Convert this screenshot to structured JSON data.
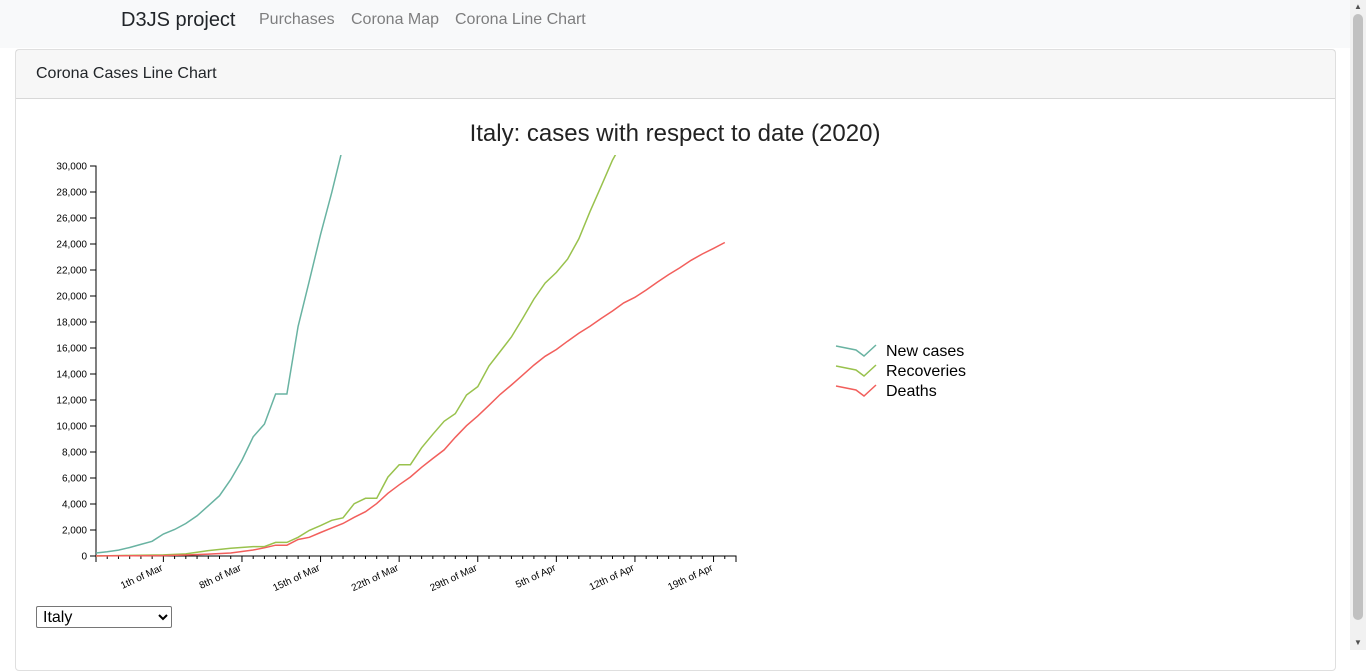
{
  "navbar": {
    "brand": "D3JS project",
    "links": [
      {
        "label": "Purchases"
      },
      {
        "label": "Corona Map"
      },
      {
        "label": "Corona Line Chart"
      }
    ]
  },
  "card": {
    "title": "Corona Cases Line Chart"
  },
  "selector": {
    "selected": "Italy",
    "options": [
      "Italy"
    ]
  },
  "chart_data": {
    "type": "line",
    "title": "Italy: cases with respect to date (2020)",
    "xlabel": "",
    "ylabel": "",
    "x_ticks": [
      "1th of Mar",
      "8th of Mar",
      "15th of Mar",
      "22th of Mar",
      "29th of Mar",
      "5th of Apr",
      "12th of Apr",
      "19th of Apr"
    ],
    "x": [
      "2020-02-24",
      "2020-02-27",
      "2020-03-01",
      "2020-03-03",
      "2020-03-05",
      "2020-03-07",
      "2020-03-09",
      "2020-03-10",
      "2020-03-11",
      "2020-03-12",
      "2020-03-13",
      "2020-03-14",
      "2020-03-15",
      "2020-03-17",
      "2020-03-20",
      "2020-03-22",
      "2020-03-26",
      "2020-03-29",
      "2020-04-01",
      "2020-04-05",
      "2020-04-09",
      "2020-04-12",
      "2020-04-16",
      "2020-04-19",
      "2020-04-21"
    ],
    "ylim": [
      0,
      30000
    ],
    "y_ticks": [
      0,
      2000,
      4000,
      6000,
      8000,
      10000,
      12000,
      14000,
      16000,
      18000,
      20000,
      22000,
      24000,
      26000,
      28000,
      30000
    ],
    "grid": false,
    "legend": "right",
    "series": [
      {
        "name": "New cases",
        "color": "#69b3a2",
        "points": [
          [
            "2020-02-24",
            230
          ],
          [
            "2020-02-25",
            320
          ],
          [
            "2020-02-26",
            450
          ],
          [
            "2020-02-27",
            650
          ],
          [
            "2020-02-28",
            890
          ],
          [
            "2020-02-29",
            1130
          ],
          [
            "2020-03-01",
            1690
          ],
          [
            "2020-03-02",
            2040
          ],
          [
            "2020-03-03",
            2500
          ],
          [
            "2020-03-04",
            3090
          ],
          [
            "2020-03-05",
            3860
          ],
          [
            "2020-03-06",
            4640
          ],
          [
            "2020-03-07",
            5880
          ],
          [
            "2020-03-08",
            7380
          ],
          [
            "2020-03-09",
            9170
          ],
          [
            "2020-03-10",
            10150
          ],
          [
            "2020-03-11",
            12460
          ],
          [
            "2020-03-12",
            12460
          ],
          [
            "2020-03-13",
            17660
          ],
          [
            "2020-03-14",
            21160
          ],
          [
            "2020-03-15",
            24750
          ],
          [
            "2020-03-16",
            27980
          ],
          [
            "2020-03-17",
            31500
          ]
        ]
      },
      {
        "name": "Recoveries",
        "color": "#99c24d",
        "points": [
          [
            "2020-02-24",
            1
          ],
          [
            "2020-02-27",
            46
          ],
          [
            "2020-03-01",
            83
          ],
          [
            "2020-03-03",
            160
          ],
          [
            "2020-03-05",
            414
          ],
          [
            "2020-03-07",
            589
          ],
          [
            "2020-03-09",
            724
          ],
          [
            "2020-03-10",
            724
          ],
          [
            "2020-03-11",
            1045
          ],
          [
            "2020-03-12",
            1045
          ],
          [
            "2020-03-13",
            1439
          ],
          [
            "2020-03-14",
            1966
          ],
          [
            "2020-03-15",
            2335
          ],
          [
            "2020-03-16",
            2749
          ],
          [
            "2020-03-17",
            2941
          ],
          [
            "2020-03-18",
            4025
          ],
          [
            "2020-03-19",
            4440
          ],
          [
            "2020-03-20",
            4440
          ],
          [
            "2020-03-21",
            6072
          ],
          [
            "2020-03-22",
            7024
          ],
          [
            "2020-03-23",
            7024
          ],
          [
            "2020-03-24",
            8326
          ],
          [
            "2020-03-25",
            9362
          ],
          [
            "2020-03-26",
            10361
          ],
          [
            "2020-03-27",
            10950
          ],
          [
            "2020-03-28",
            12384
          ],
          [
            "2020-03-29",
            13030
          ],
          [
            "2020-03-30",
            14620
          ],
          [
            "2020-03-31",
            15729
          ],
          [
            "2020-04-01",
            16847
          ],
          [
            "2020-04-02",
            18278
          ],
          [
            "2020-04-03",
            19758
          ],
          [
            "2020-04-04",
            20996
          ],
          [
            "2020-04-05",
            21815
          ],
          [
            "2020-04-06",
            22837
          ],
          [
            "2020-04-07",
            24392
          ],
          [
            "2020-04-08",
            26491
          ],
          [
            "2020-04-09",
            28470
          ],
          [
            "2020-04-10",
            30455
          ],
          [
            "2020-04-11",
            32000
          ]
        ]
      },
      {
        "name": "Deaths",
        "color": "#f25f5c",
        "points": [
          [
            "2020-02-24",
            7
          ],
          [
            "2020-02-27",
            17
          ],
          [
            "2020-03-01",
            34
          ],
          [
            "2020-03-03",
            79
          ],
          [
            "2020-03-05",
            148
          ],
          [
            "2020-03-07",
            233
          ],
          [
            "2020-03-09",
            463
          ],
          [
            "2020-03-10",
            631
          ],
          [
            "2020-03-11",
            827
          ],
          [
            "2020-03-12",
            827
          ],
          [
            "2020-03-13",
            1266
          ],
          [
            "2020-03-14",
            1441
          ],
          [
            "2020-03-15",
            1809
          ],
          [
            "2020-03-16",
            2158
          ],
          [
            "2020-03-17",
            2503
          ],
          [
            "2020-03-18",
            2978
          ],
          [
            "2020-03-19",
            3405
          ],
          [
            "2020-03-20",
            4032
          ],
          [
            "2020-03-21",
            4825
          ],
          [
            "2020-03-22",
            5476
          ],
          [
            "2020-03-23",
            6077
          ],
          [
            "2020-03-24",
            6820
          ],
          [
            "2020-03-25",
            7503
          ],
          [
            "2020-03-26",
            8165
          ],
          [
            "2020-03-27",
            9134
          ],
          [
            "2020-03-28",
            10023
          ],
          [
            "2020-03-29",
            10779
          ],
          [
            "2020-03-30",
            11591
          ],
          [
            "2020-03-31",
            12428
          ],
          [
            "2020-04-01",
            13155
          ],
          [
            "2020-04-02",
            13915
          ],
          [
            "2020-04-03",
            14681
          ],
          [
            "2020-04-04",
            15362
          ],
          [
            "2020-04-05",
            15887
          ],
          [
            "2020-04-06",
            16523
          ],
          [
            "2020-04-07",
            17127
          ],
          [
            "2020-04-08",
            17669
          ],
          [
            "2020-04-09",
            18279
          ],
          [
            "2020-04-10",
            18849
          ],
          [
            "2020-04-11",
            19468
          ],
          [
            "2020-04-12",
            19899
          ],
          [
            "2020-04-13",
            20465
          ],
          [
            "2020-04-14",
            21067
          ],
          [
            "2020-04-15",
            21645
          ],
          [
            "2020-04-16",
            22170
          ],
          [
            "2020-04-17",
            22745
          ],
          [
            "2020-04-18",
            23227
          ],
          [
            "2020-04-19",
            23660
          ],
          [
            "2020-04-20",
            24114
          ]
        ]
      }
    ]
  }
}
